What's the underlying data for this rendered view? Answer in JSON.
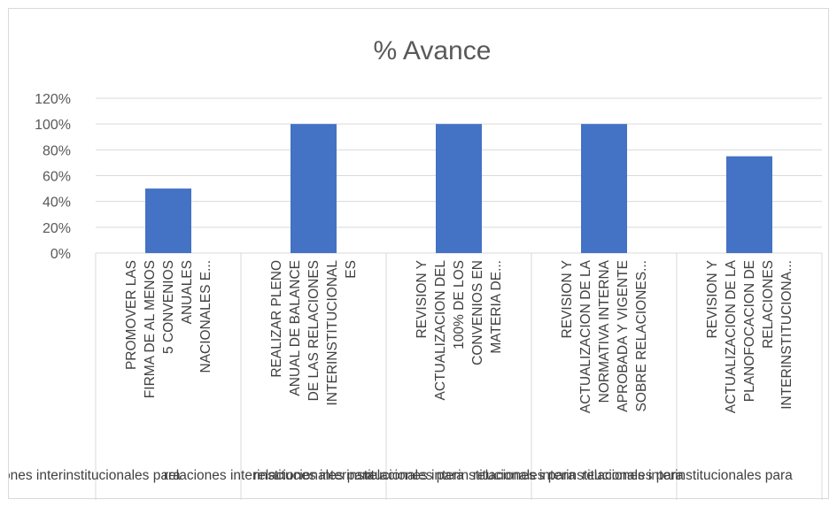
{
  "chart_data": {
    "type": "bar",
    "title": "% Avance",
    "xlabel": "",
    "ylabel": "",
    "ylim": [
      0,
      1.2
    ],
    "ytick_labels": [
      "0%",
      "20%",
      "40%",
      "60%",
      "80%",
      "100%",
      "120%"
    ],
    "categories": [
      [
        "PROMOVER LAS",
        "FIRMA DE AL MENOS",
        "5 CONVENIOS",
        "ANUALES",
        "NACIONALES E..."
      ],
      [
        "REALIZAR PLENO",
        "ANUAL DE BALANCE",
        "DE LAS RELACIONES",
        "INTERINSTITUCIONAL",
        "ES"
      ],
      [
        "REVISION Y",
        "ACTUALIZACION DEL",
        "100% DE LOS",
        "CONVENIOS EN",
        "MATERIA DE..."
      ],
      [
        "REVISION Y",
        "ACTUALIZACION DE LA",
        "NORMATIVA INTERNA",
        "APROBADA Y VIGENTE",
        "SOBRE RELACIONES..."
      ],
      [
        "REVISION Y",
        "ACTUALIZACION DE LA",
        "PLANOFOCACION DE",
        "RELACIONES",
        "INTERINSTITUCIONA..."
      ]
    ],
    "values": [
      0.5,
      1.0,
      1.0,
      1.0,
      0.75
    ],
    "bar_color": "#4472c4",
    "grid": true,
    "legend": "none",
    "overflow_labels": [
      "ones interinstitucionales para",
      "relaciones interinstitucionales para",
      "relaciones interinstitucionales para",
      "relaciones interinstitucionales para",
      "relaciones interinstitucionales para",
      "relaciones interinstitucionales para"
    ]
  }
}
